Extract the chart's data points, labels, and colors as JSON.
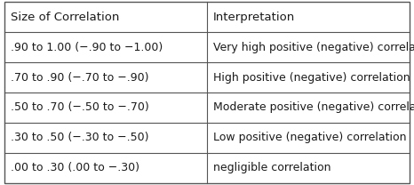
{
  "col_headers": [
    "Size of Correlation",
    "Interpretation"
  ],
  "rows": [
    [
      ".90 to 1.00 (−.90 to −1.00)",
      "Very high positive (negative) correlation"
    ],
    [
      ".70 to .90 (−.70 to −.90)",
      "High positive (negative) correlation"
    ],
    [
      ".50 to .70 (−.50 to −.70)",
      "Moderate positive (negative) correlation"
    ],
    [
      ".30 to .50 (−.30 to −.50)",
      "Low positive (negative) correlation"
    ],
    [
      ".00 to .30 (.00 to −.30)",
      "negligible correlation"
    ]
  ],
  "col_split": 0.5,
  "bg_color": "#ffffff",
  "border_color": "#555555",
  "text_color": "#1a1a1a",
  "header_fontsize": 9.5,
  "row_fontsize": 9.0,
  "fig_width": 4.66,
  "fig_height": 2.08,
  "dpi": 100
}
